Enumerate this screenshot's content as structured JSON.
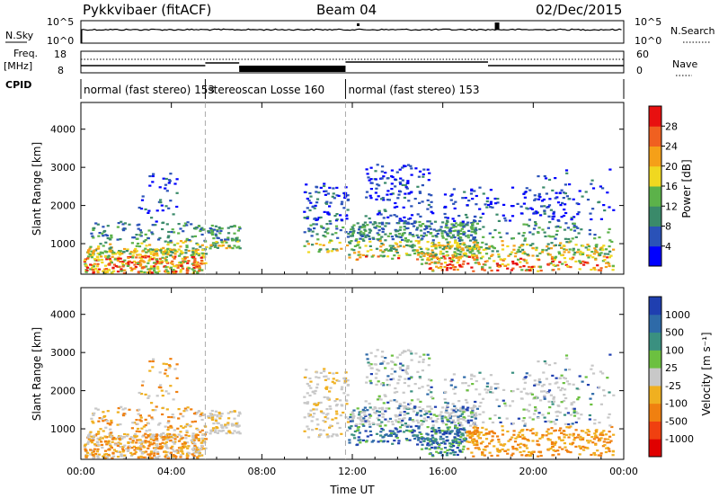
{
  "header": {
    "station": "Pykkvibaer (fitACF)",
    "beam": "Beam 04",
    "date": "02/Dec/2015"
  },
  "nsky_panel": {
    "left_label": "N.Sky",
    "left_ticks": [
      "10^5",
      "10^0"
    ],
    "right_label": "N.Search",
    "right_ticks": [
      "10^5",
      "10^0"
    ]
  },
  "freq_panel": {
    "left_label_1": "Freq.",
    "left_label_2": "[MHz]",
    "left_ticks": [
      "18",
      "8"
    ],
    "right_label": "Nave",
    "right_ticks": [
      "60",
      "0"
    ],
    "cpid_label": "CPID"
  },
  "cpid_segments": [
    {
      "start": 0.0,
      "end": 5.5,
      "label": "normal (fast stereo)",
      "id": "153"
    },
    {
      "start": 5.5,
      "end": 11.7,
      "label": "stereoscan Losse",
      "id": "160"
    },
    {
      "start": 11.7,
      "end": 24.0,
      "label": "normal (fast stereo)",
      "id": "153"
    }
  ],
  "chart_data": [
    {
      "type": "heatmap",
      "name": "power",
      "ylabel": "Slant Range [km]",
      "ylim": [
        200,
        4700
      ],
      "yticks": [
        "1000",
        "2000",
        "3000",
        "4000"
      ],
      "xlim": [
        0,
        24
      ],
      "colorbar": {
        "label": "Power [dB]",
        "range": [
          0,
          32
        ],
        "ticks": [
          "4",
          "8",
          "12",
          "16",
          "20",
          "24",
          "28"
        ],
        "colors": [
          "#0000ff",
          "#2a52b8",
          "#3a8a6a",
          "#5cb24a",
          "#f0d820",
          "#f5a018",
          "#f06020",
          "#e81010"
        ]
      }
    },
    {
      "type": "heatmap",
      "name": "velocity",
      "ylabel": "Slant Range [km]",
      "ylim": [
        200,
        4700
      ],
      "yticks": [
        "1000",
        "2000",
        "3000",
        "4000"
      ],
      "xlim": [
        0,
        24
      ],
      "xlabel": "Time UT",
      "xticks": [
        "00:00",
        "04:00",
        "08:00",
        "12:00",
        "16:00",
        "20:00",
        "00:00"
      ],
      "colorbar": {
        "label": "Velocity [m s⁻¹]",
        "ticks": [
          "1000",
          "500",
          "100",
          "25",
          "-25",
          "-100",
          "-500",
          "-1000"
        ],
        "colors": [
          "#1f3fb0",
          "#2e6aa8",
          "#3a9080",
          "#6cc040",
          "#c8c8c8",
          "#f0b020",
          "#f08010",
          "#f04010",
          "#e00000"
        ]
      }
    }
  ]
}
